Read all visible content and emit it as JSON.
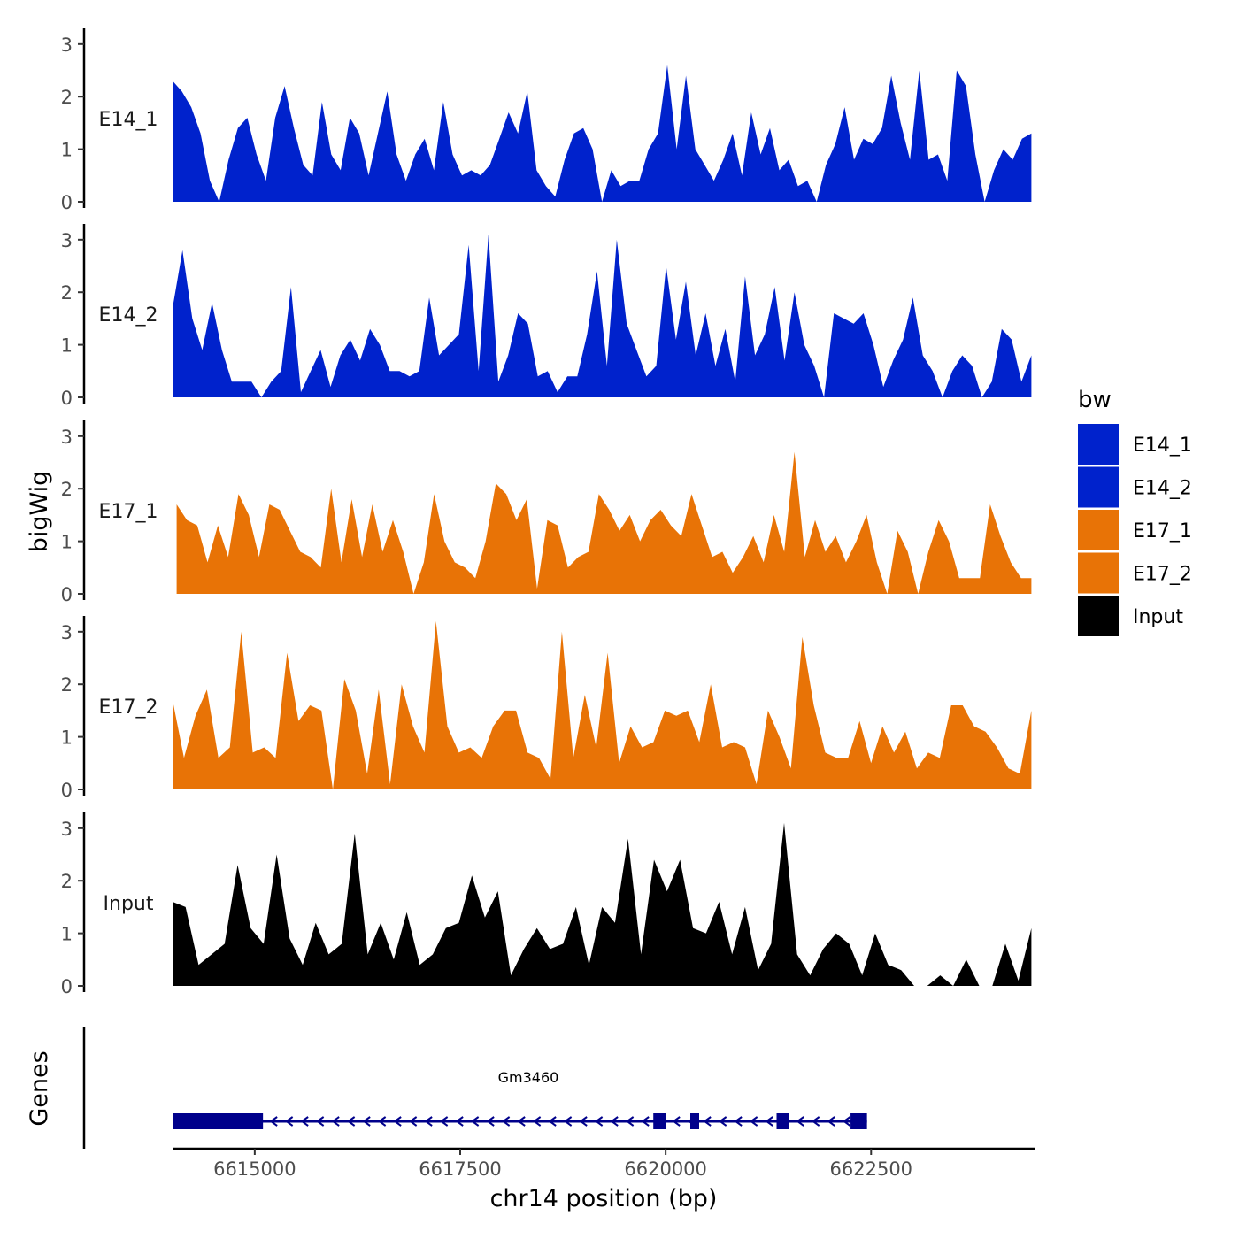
{
  "chart_data": {
    "type": "area",
    "title": "",
    "xlabel": "chr14 position (bp)",
    "ylabel": "bigWig",
    "genes_label": "Genes",
    "x_range": [
      6614000,
      6624500
    ],
    "ylim": [
      0,
      3.3
    ],
    "x_ticks": [
      6615000,
      6617500,
      6620000,
      6622500
    ],
    "x_tick_labels": [
      "6615000",
      "6617500",
      "6620000",
      "6622500"
    ],
    "y_ticks": [
      0,
      1,
      2,
      3
    ],
    "y_tick_labels": [
      "0",
      "1",
      "2",
      "3"
    ],
    "legend_title": "bw",
    "legend_position": "right",
    "legend": [
      {
        "name": "E14_1",
        "color": "#0022CC"
      },
      {
        "name": "E14_2",
        "color": "#0022CC"
      },
      {
        "name": "E17_1",
        "color": "#E87306"
      },
      {
        "name": "E17_2",
        "color": "#E87306"
      },
      {
        "name": "Input",
        "color": "#000000"
      }
    ],
    "series": [
      {
        "name": "E14_1",
        "color": "#0022CC",
        "x_start": 6614000,
        "x_end": 6624450,
        "values": [
          2.3,
          2.1,
          1.8,
          1.3,
          0.4,
          0.0,
          0.8,
          1.4,
          1.6,
          0.9,
          0.4,
          1.6,
          2.2,
          1.4,
          0.7,
          0.5,
          1.9,
          0.9,
          0.6,
          1.6,
          1.3,
          0.5,
          1.3,
          2.1,
          0.9,
          0.4,
          0.9,
          1.2,
          0.6,
          1.9,
          0.9,
          0.5,
          0.6,
          0.5,
          0.7,
          1.2,
          1.7,
          1.3,
          2.1,
          0.6,
          0.3,
          0.1,
          0.8,
          1.3,
          1.4,
          1.0,
          0.0,
          0.6,
          0.3,
          0.4,
          0.4,
          1.0,
          1.3,
          2.6,
          1.0,
          2.4,
          1.0,
          0.7,
          0.4,
          0.8,
          1.3,
          0.5,
          1.7,
          0.9,
          1.4,
          0.6,
          0.8,
          0.3,
          0.4,
          0.0,
          0.7,
          1.1,
          1.8,
          0.8,
          1.2,
          1.1,
          1.4,
          2.4,
          1.5,
          0.8,
          2.5,
          0.8,
          0.9,
          0.4,
          2.5,
          2.2,
          0.9,
          0.0,
          0.6,
          1.0,
          0.8,
          1.2,
          1.3
        ]
      },
      {
        "name": "E14_2",
        "color": "#0022CC",
        "x_start": 6614000,
        "x_end": 6624450,
        "values": [
          1.7,
          2.8,
          1.5,
          0.9,
          1.8,
          0.9,
          0.3,
          0.3,
          0.3,
          0.0,
          0.3,
          0.5,
          2.1,
          0.1,
          0.5,
          0.9,
          0.2,
          0.8,
          1.1,
          0.7,
          1.3,
          1.0,
          0.5,
          0.5,
          0.4,
          0.5,
          1.9,
          0.8,
          1.0,
          1.2,
          2.9,
          0.5,
          3.1,
          0.3,
          0.8,
          1.6,
          1.4,
          0.4,
          0.5,
          0.1,
          0.4,
          0.4,
          1.2,
          2.4,
          0.6,
          3.0,
          1.4,
          0.9,
          0.4,
          0.6,
          2.5,
          1.1,
          2.2,
          0.8,
          1.6,
          0.6,
          1.3,
          0.3,
          2.3,
          0.8,
          1.2,
          2.1,
          0.7,
          2.0,
          1.0,
          0.6,
          0.0,
          1.6,
          1.5,
          1.4,
          1.6,
          1.0,
          0.2,
          0.7,
          1.1,
          1.9,
          0.8,
          0.5,
          0.0,
          0.5,
          0.8,
          0.6,
          0.0,
          0.3,
          1.3,
          1.1,
          0.3,
          0.8
        ]
      },
      {
        "name": "E17_1",
        "color": "#E87306",
        "x_start": 6614050,
        "x_end": 6624450,
        "values": [
          1.7,
          1.4,
          1.3,
          0.6,
          1.3,
          0.7,
          1.9,
          1.5,
          0.7,
          1.7,
          1.6,
          1.2,
          0.8,
          0.7,
          0.5,
          2.0,
          0.6,
          1.8,
          0.7,
          1.7,
          0.8,
          1.4,
          0.8,
          0.0,
          0.6,
          1.9,
          1.0,
          0.6,
          0.5,
          0.3,
          1.0,
          2.1,
          1.9,
          1.4,
          1.8,
          0.1,
          1.4,
          1.3,
          0.5,
          0.7,
          0.8,
          1.9,
          1.6,
          1.2,
          1.5,
          1.0,
          1.4,
          1.6,
          1.3,
          1.1,
          1.9,
          1.3,
          0.7,
          0.8,
          0.4,
          0.7,
          1.1,
          0.6,
          1.5,
          0.8,
          2.7,
          0.7,
          1.4,
          0.8,
          1.1,
          0.6,
          1.0,
          1.5,
          0.6,
          0.0,
          1.2,
          0.8,
          0.0,
          0.8,
          1.4,
          1.0,
          0.3,
          0.3,
          0.3,
          1.7,
          1.1,
          0.6,
          0.3,
          0.3
        ]
      },
      {
        "name": "E17_2",
        "color": "#E87306",
        "x_start": 6614000,
        "x_end": 6624450,
        "values": [
          1.7,
          0.6,
          1.4,
          1.9,
          0.6,
          0.8,
          3.0,
          0.7,
          0.8,
          0.6,
          2.6,
          1.3,
          1.6,
          1.5,
          0.0,
          2.1,
          1.5,
          0.3,
          1.9,
          0.1,
          2.0,
          1.2,
          0.7,
          3.2,
          1.2,
          0.7,
          0.8,
          0.6,
          1.2,
          1.5,
          1.5,
          0.7,
          0.6,
          0.2,
          3.0,
          0.6,
          1.8,
          0.8,
          2.6,
          0.5,
          1.2,
          0.8,
          0.9,
          1.5,
          1.4,
          1.5,
          0.9,
          2.0,
          0.8,
          0.9,
          0.8,
          0.1,
          1.5,
          1.0,
          0.4,
          2.9,
          1.6,
          0.7,
          0.6,
          0.6,
          1.3,
          0.5,
          1.2,
          0.7,
          1.1,
          0.4,
          0.7,
          0.6,
          1.6,
          1.6,
          1.2,
          1.1,
          0.8,
          0.4,
          0.3,
          1.5
        ]
      },
      {
        "name": "Input",
        "color": "#000000",
        "x_start": 6614000,
        "x_end": 6624450,
        "values": [
          1.6,
          1.5,
          0.4,
          0.6,
          0.8,
          2.3,
          1.1,
          0.8,
          2.5,
          0.9,
          0.4,
          1.2,
          0.6,
          0.8,
          2.9,
          0.6,
          1.2,
          0.5,
          1.4,
          0.4,
          0.6,
          1.1,
          1.2,
          2.1,
          1.3,
          1.8,
          0.2,
          0.7,
          1.1,
          0.7,
          0.8,
          1.5,
          0.4,
          1.5,
          1.2,
          2.8,
          0.6,
          2.4,
          1.8,
          2.4,
          1.1,
          1.0,
          1.6,
          0.6,
          1.5,
          0.3,
          0.8,
          3.1,
          0.6,
          0.2,
          0.7,
          1.0,
          0.8,
          0.2,
          1.0,
          0.4,
          0.3,
          0.0,
          0.0,
          0.2,
          0.0,
          0.5,
          0.0,
          0.0,
          0.8,
          0.1,
          1.1
        ]
      }
    ],
    "gene_track": {
      "gene_name": "Gm3460",
      "strand": "-",
      "color": "#00008B",
      "start": 6614000,
      "end": 6622450,
      "exons": [
        [
          6614000,
          6615100
        ],
        [
          6619850,
          6620000
        ],
        [
          6620300,
          6620400
        ],
        [
          6621350,
          6621500
        ],
        [
          6622250,
          6622450
        ]
      ]
    }
  }
}
